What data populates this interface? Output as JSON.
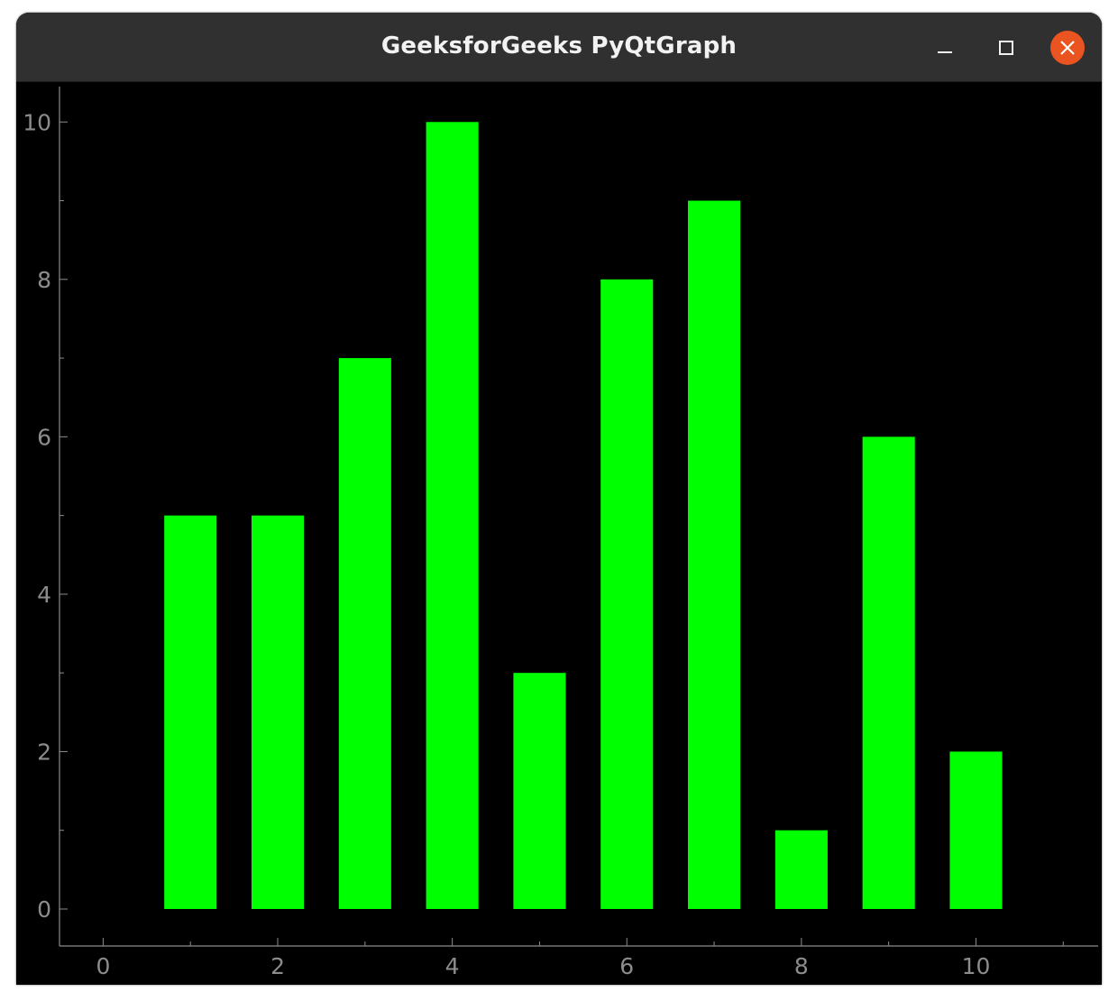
{
  "window": {
    "title": "GeeksforGeeks PyQtGraph"
  },
  "colors": {
    "titlebar_bg": "#303030",
    "plot_bg": "#000000",
    "bar_fill": "#00ff00",
    "axis": "#8c8c8c",
    "close_button": "#e95420"
  },
  "chart_data": {
    "type": "bar",
    "title": "",
    "xlabel": "",
    "ylabel": "",
    "x": [
      1,
      2,
      3,
      4,
      5,
      6,
      7,
      8,
      9,
      10
    ],
    "values": [
      5,
      5,
      7,
      10,
      3,
      8,
      9,
      1,
      6,
      2
    ],
    "bar_width": 0.6,
    "xlim": [
      -0.5,
      11.4
    ],
    "ylim": [
      -0.47,
      10.45
    ],
    "x_ticks": [
      0,
      2,
      4,
      6,
      8,
      10
    ],
    "y_ticks": [
      0,
      2,
      4,
      6,
      8,
      10
    ],
    "x_minor_ticks": [
      1,
      3,
      5,
      7,
      9,
      11
    ],
    "y_minor_ticks": [
      1,
      3,
      5,
      7,
      9
    ],
    "grid": false,
    "legend": "none"
  }
}
